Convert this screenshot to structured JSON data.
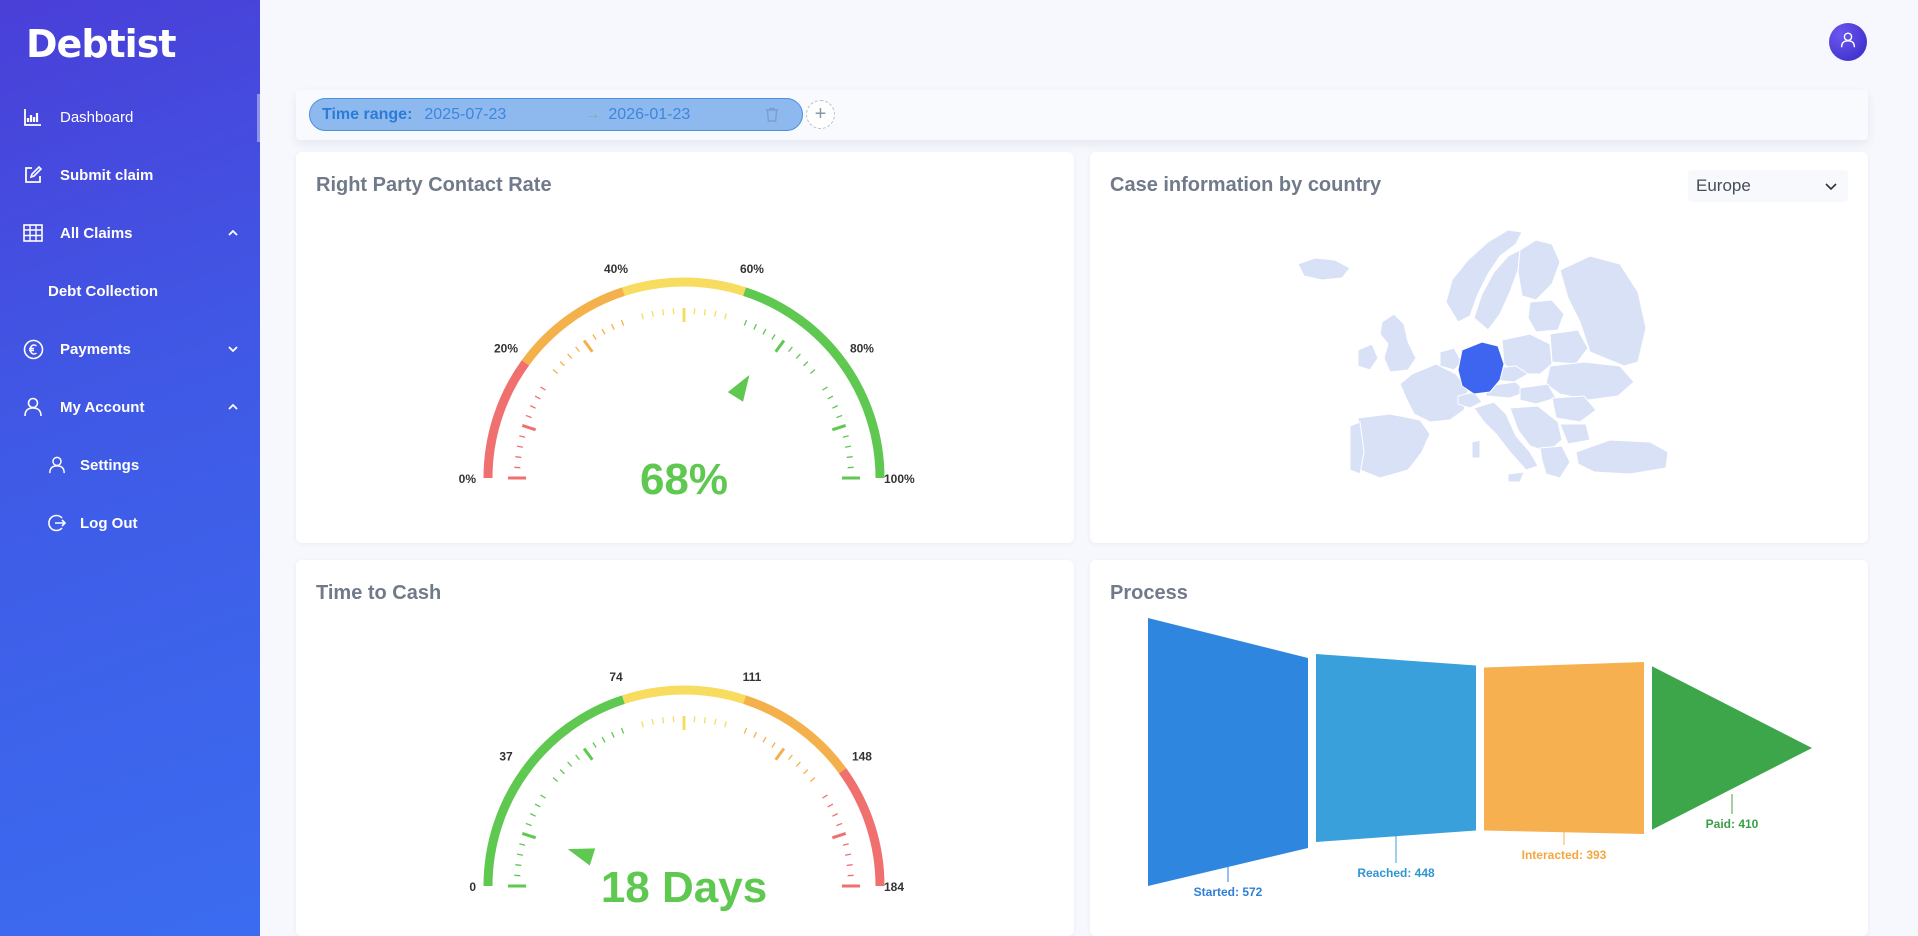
{
  "app": {
    "logo": "Debtist"
  },
  "sidebar": {
    "items": [
      {
        "label": "Dashboard",
        "icon": "chart-icon"
      },
      {
        "label": "Submit claim",
        "icon": "edit-icon"
      },
      {
        "label": "All Claims",
        "icon": "table-icon",
        "expanded": true
      },
      {
        "label": "Debt Collection"
      },
      {
        "label": "Payments",
        "icon": "euro-icon",
        "expanded": false
      },
      {
        "label": "My Account",
        "icon": "user-icon",
        "expanded": true
      },
      {
        "label": "Settings",
        "icon": "user-icon"
      },
      {
        "label": "Log Out",
        "icon": "logout-icon"
      }
    ]
  },
  "filter": {
    "label": "Time range:",
    "start": "2025-07-23",
    "arrow": "→",
    "end": "2026-01-23",
    "add": "+"
  },
  "rpc": {
    "title": "Right Party Contact Rate",
    "value_text": "68%",
    "value": 68,
    "ticks": [
      "0%",
      "20%",
      "40%",
      "60%",
      "80%",
      "100%"
    ]
  },
  "country": {
    "title": "Case information by country",
    "region": "Europe",
    "highlight": "Germany"
  },
  "ttc": {
    "title": "Time to Cash",
    "value_text": "18 Days",
    "value": 18,
    "max": 184,
    "ticks": [
      "0",
      "37",
      "74",
      "111",
      "148",
      "184"
    ]
  },
  "process": {
    "title": "Process",
    "stages": [
      {
        "label": "Started: 572",
        "value": 572,
        "color": "#2f86df"
      },
      {
        "label": "Reached: 448",
        "value": 448,
        "color": "#3aa0dc"
      },
      {
        "label": "Interacted: 393",
        "value": 393,
        "color": "#f6b050"
      },
      {
        "label": "Paid: 410",
        "value": 410,
        "color": "#3da64a"
      }
    ]
  },
  "colors": {
    "accent": "#4a3fd8",
    "green": "#5ec850",
    "red": "#f07070",
    "orange": "#f4b04a",
    "yellow": "#f7dc60"
  }
}
